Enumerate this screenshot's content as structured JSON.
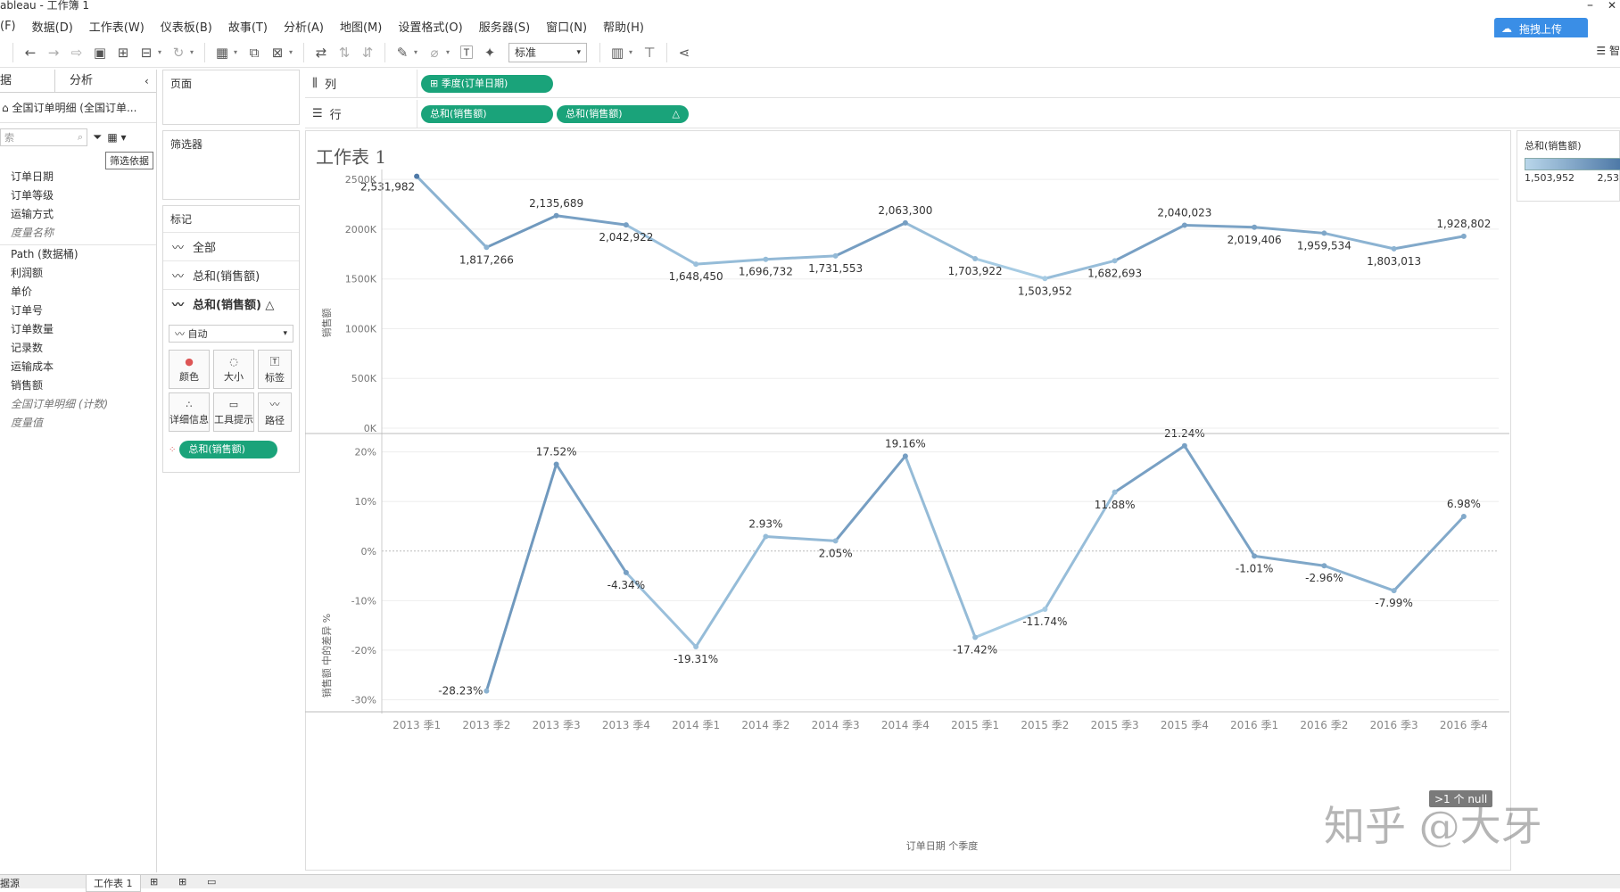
{
  "window": {
    "title": "ableau - 工作簿 1"
  },
  "menu": [
    "(F)",
    "数据(D)",
    "工作表(W)",
    "仪表板(B)",
    "故事(T)",
    "分析(A)",
    "地图(M)",
    "设置格式(O)",
    "服务器(S)",
    "窗口(N)",
    "帮助(H)"
  ],
  "toolbar": {
    "fit_select": "标准",
    "upload_label": "拖拽上传",
    "right_icon_label": "智"
  },
  "datapane": {
    "tab_data": "据",
    "tab_analysis": "分析",
    "datasource": "全国订单明细 (全国订单...",
    "search_placeholder": "索",
    "filter_tooltip": "筛选依据",
    "dimensions": [
      "订单日期",
      "订单等级",
      "运输方式",
      "度量名称"
    ],
    "measures": [
      "Path (数据桶)",
      "利润额",
      "单价",
      "订单号",
      "订单数量",
      "记录数",
      "运输成本",
      "销售额",
      "全国订单明细 (计数)",
      "度量值"
    ]
  },
  "cards": {
    "pages": "页面",
    "filters": "筛选器",
    "marks": "标记",
    "mark_rows": [
      "全部",
      "总和(销售额)",
      "总和(销售额) △"
    ],
    "mark_type": "自动",
    "mark_buttons": [
      "颜色",
      "大小",
      "标签",
      "详细信息",
      "工具提示",
      "路径"
    ],
    "color_pill": "总和(销售额)"
  },
  "shelves": {
    "columns_label": "列",
    "rows_label": "行",
    "column_pill": "季度(订单日期)",
    "row_pills": [
      "总和(销售额)",
      "总和(销售额)"
    ],
    "row_pill_delta": "△"
  },
  "sheet_title": "工作表 1",
  "legend": {
    "title": "总和(销售额)",
    "min_label": "1,503,952",
    "max_label": "2,53"
  },
  "bottom": {
    "datasource_tab": "据源",
    "sheet_tab": "工作表 1"
  },
  "watermark": "知乎 @大牙",
  "null_badge": ">1 个 null",
  "chart_data": [
    {
      "type": "line",
      "ylabel": "销售额",
      "ylim": [
        0,
        2600000
      ],
      "yticks": [
        "0K",
        "500K",
        "1000K",
        "1500K",
        "2000K",
        "2500K"
      ],
      "ytick_values": [
        0,
        500000,
        1000000,
        1500000,
        2000000,
        2500000
      ],
      "categories": [
        "2013 季1",
        "2013 季2",
        "2013 季3",
        "2013 季4",
        "2014 季1",
        "2014 季2",
        "2014 季3",
        "2014 季4",
        "2015 季1",
        "2015 季2",
        "2015 季3",
        "2015 季4",
        "2016 季1",
        "2016 季2",
        "2016 季3",
        "2016 季4"
      ],
      "values": [
        2531982,
        1817266,
        2135689,
        2042922,
        1648450,
        1696732,
        1731553,
        2063300,
        1703922,
        1503952,
        1682693,
        2040023,
        2019406,
        1959534,
        1803013,
        1928802
      ],
      "labels": [
        "2,531,982",
        "1,817,266",
        "2,135,689",
        "2,042,922",
        "1,648,450",
        "1,696,732",
        "1,731,553",
        "2,063,300",
        "1,703,922",
        "1,503,952",
        "1,682,693",
        "2,040,023",
        "2,019,406",
        "1,959,534",
        "1,803,013",
        "1,928,802"
      ]
    },
    {
      "type": "line",
      "ylabel": "销售额 中的差异 %",
      "xlabel": "订单日期 个季度",
      "ylim": [
        -31,
        23
      ],
      "yticks": [
        "-30%",
        "-20%",
        "-10%",
        "0%",
        "10%",
        "20%"
      ],
      "ytick_values": [
        -30,
        -20,
        -10,
        0,
        10,
        20
      ],
      "categories": [
        "2013 季1",
        "2013 季2",
        "2013 季3",
        "2013 季4",
        "2014 季1",
        "2014 季2",
        "2014 季3",
        "2014 季4",
        "2015 季1",
        "2015 季2",
        "2015 季3",
        "2015 季4",
        "2016 季1",
        "2016 季2",
        "2016 季3",
        "2016 季4"
      ],
      "values": [
        null,
        -28.23,
        17.52,
        -4.34,
        -19.31,
        2.93,
        2.05,
        19.16,
        -17.42,
        -11.74,
        11.88,
        21.24,
        -1.01,
        -2.96,
        -7.99,
        6.98
      ],
      "labels": [
        "",
        "-28.23%",
        "17.52%",
        "-4.34%",
        "-19.31%",
        "2.93%",
        "2.05%",
        "19.16%",
        "-17.42%",
        "-11.74%",
        "11.88%",
        "21.24%",
        "-1.01%",
        "-2.96%",
        "-7.99%",
        "6.98%"
      ]
    }
  ],
  "colors": {
    "line_dark": "#4e79a7",
    "line_light": "#a6cbe3",
    "pill": "#1aa37a"
  }
}
